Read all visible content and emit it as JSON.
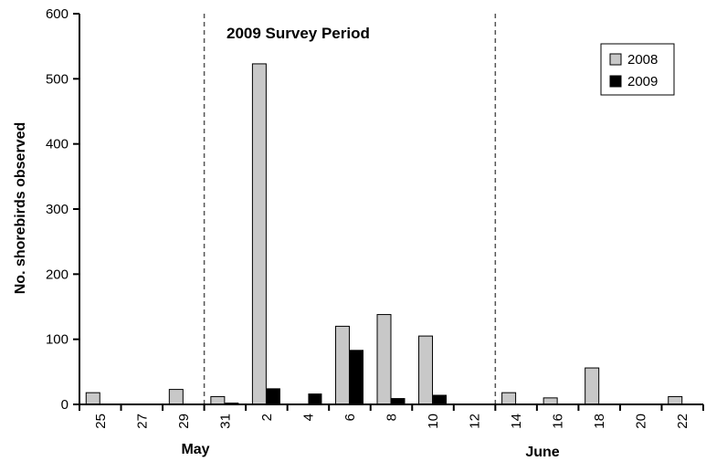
{
  "chart_data": {
    "type": "bar",
    "ylabel": "No. shorebirds observed",
    "ylim": [
      0,
      600
    ],
    "yticks": [
      "0",
      "100",
      "200",
      "300",
      "400",
      "500",
      "600"
    ],
    "categories": [
      "25",
      "27",
      "29",
      "31",
      "2",
      "4",
      "6",
      "8",
      "10",
      "12",
      "14",
      "16",
      "18",
      "20",
      "22"
    ],
    "month_labels": [
      "May",
      "June"
    ],
    "annotation": "2009 Survey Period",
    "survey_period_bounds": [
      "30",
      "13"
    ],
    "legend": [
      "2008",
      "2009"
    ],
    "legend_position": "top-right",
    "grid": false,
    "series": [
      {
        "name": "2008",
        "values": [
          18,
          0,
          23,
          12,
          523,
          0,
          120,
          138,
          105,
          0,
          18,
          10,
          56,
          0,
          12
        ]
      },
      {
        "name": "2009",
        "values": [
          null,
          null,
          null,
          2,
          24,
          16,
          83,
          9,
          14,
          0,
          null,
          null,
          null,
          null,
          null
        ]
      }
    ],
    "colors": {
      "2008": "#c8c8c8",
      "2009": "#000000",
      "axis": "#000000",
      "divider": "#555555"
    }
  }
}
